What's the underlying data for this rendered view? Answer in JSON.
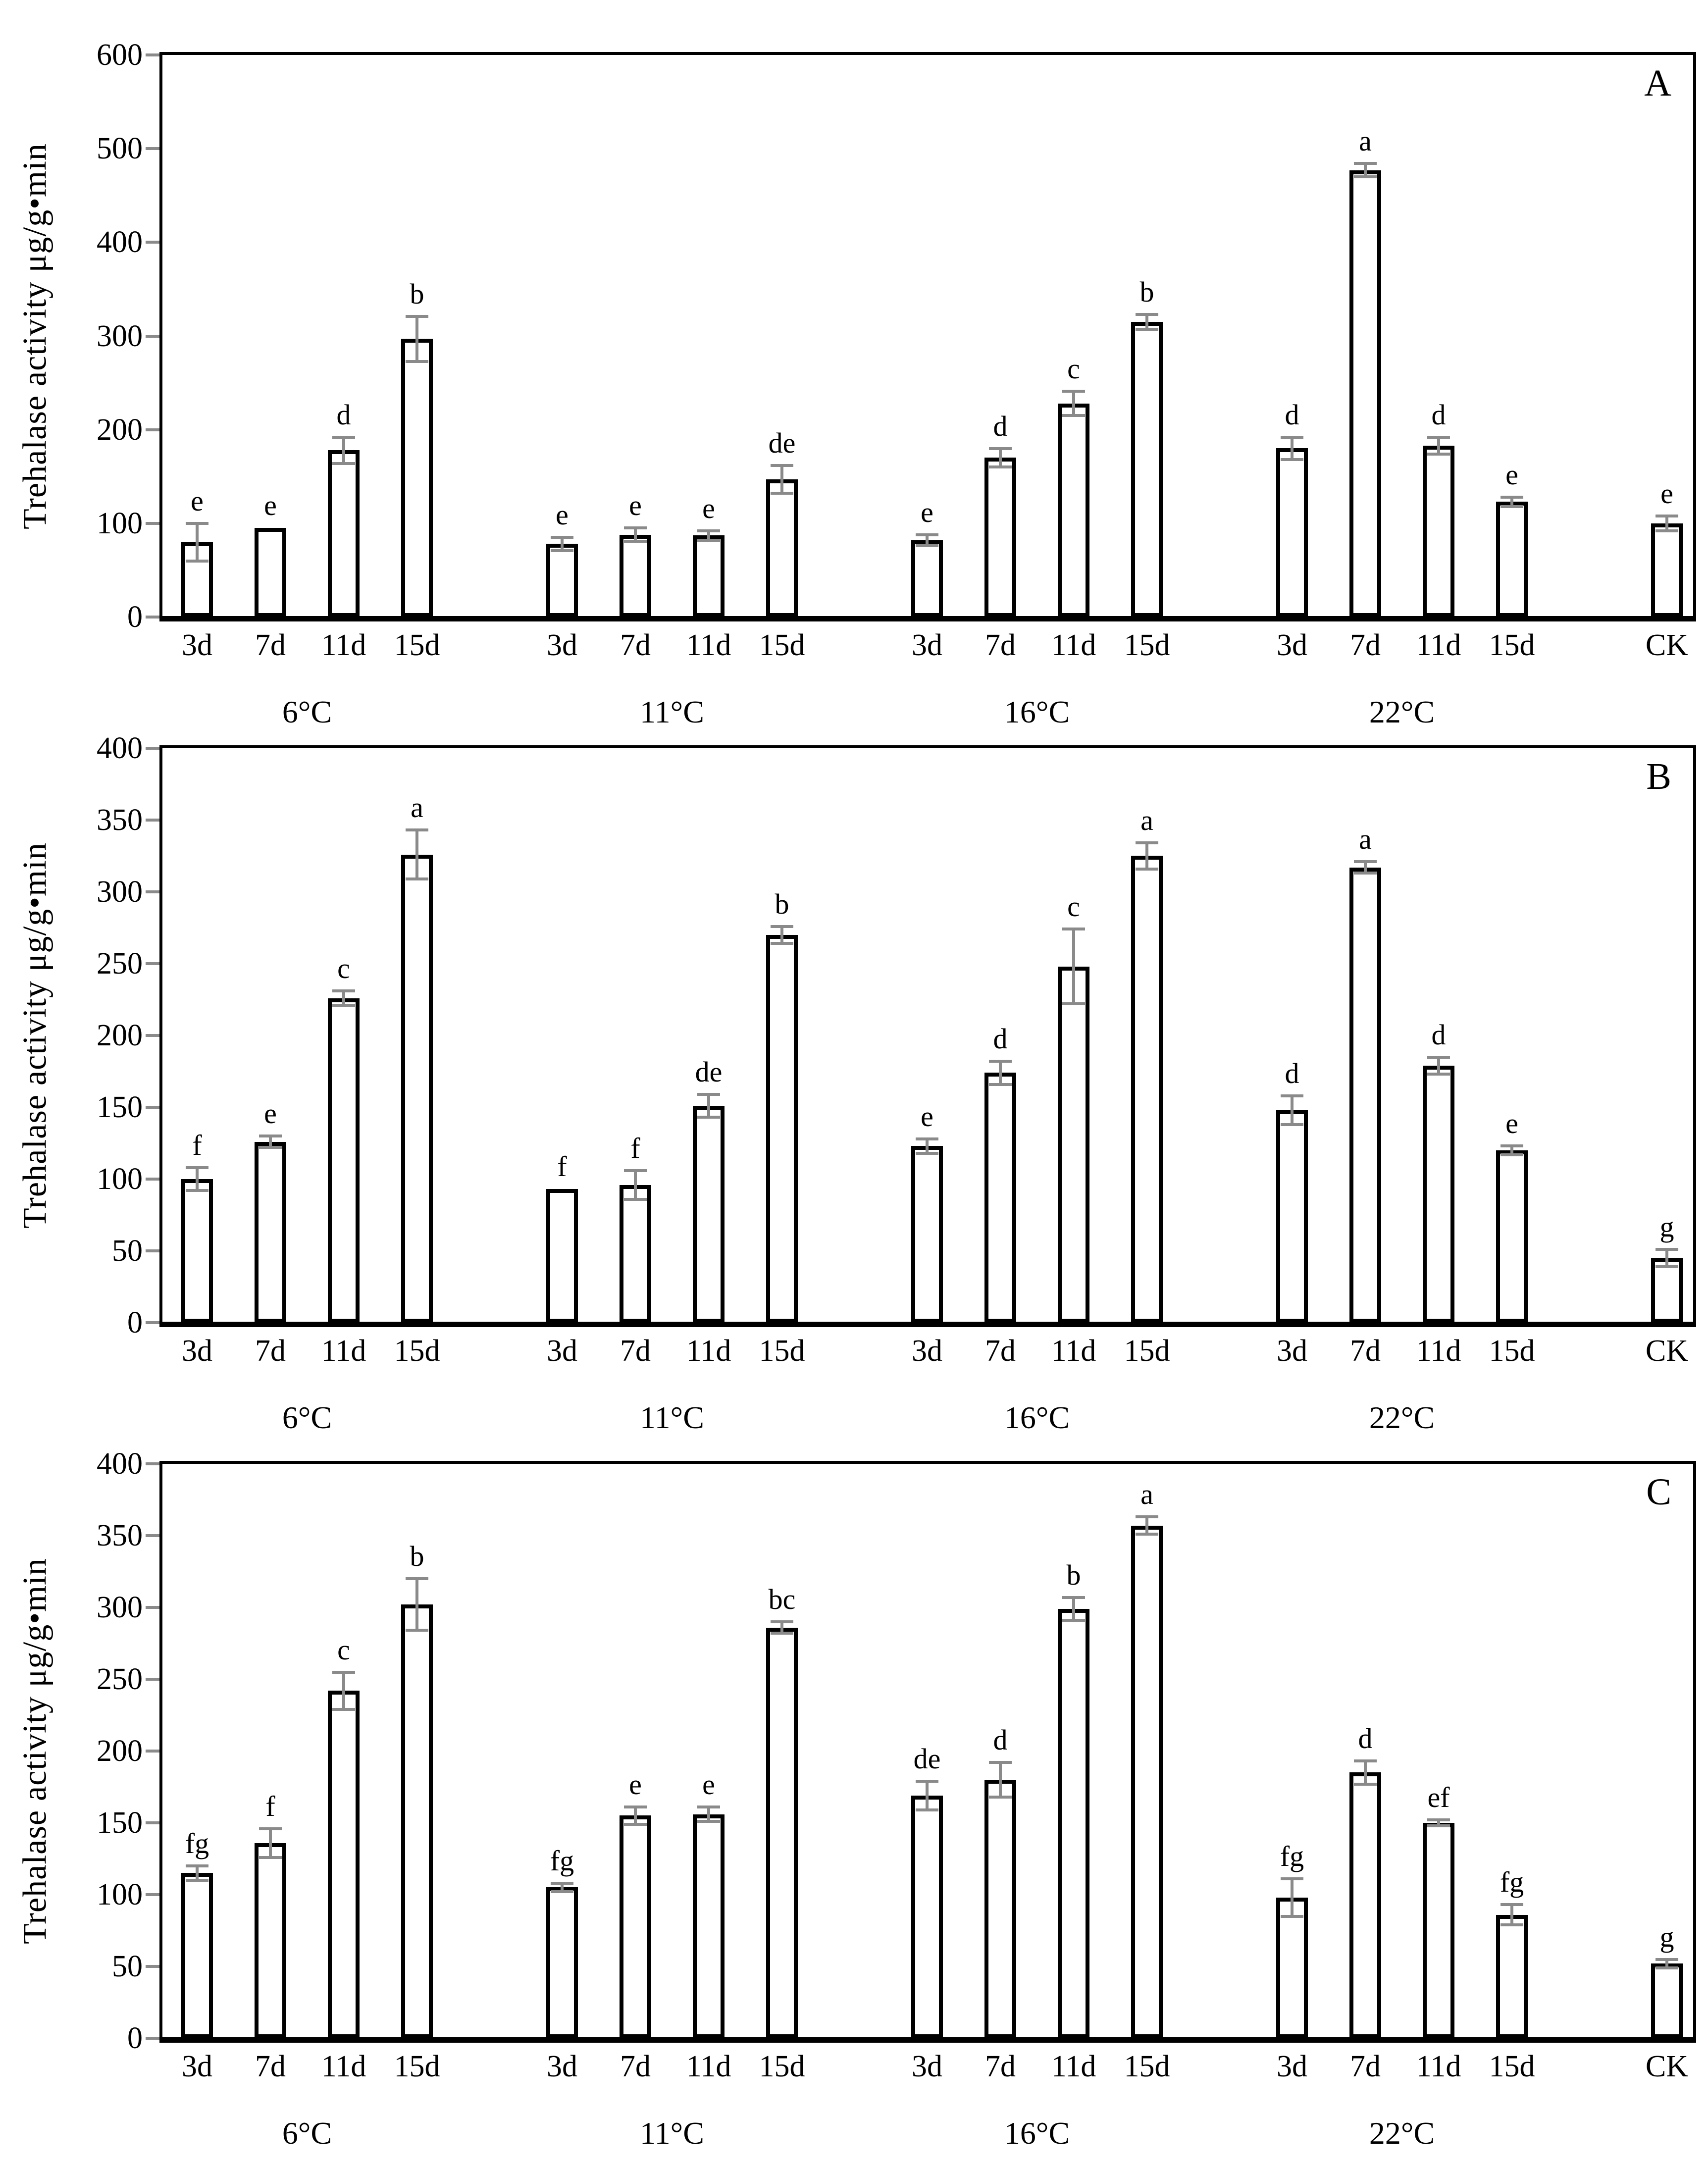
{
  "figure": {
    "background": "#ffffff",
    "bar_fill": "#ffffff",
    "bar_border": "#000000",
    "error_bar_color": "#8a8a8a",
    "axis_color": "#000000"
  },
  "chart_data": [
    {
      "type": "bar",
      "panel_label": "A",
      "title": "",
      "xlabel": "",
      "ylabel": "Trehalase activity μg/g•min",
      "ylim": [
        0,
        600
      ],
      "ytick_step": 100,
      "grid": false,
      "legend": "none",
      "groups": [
        {
          "label": "6°C",
          "bars": [
            {
              "x": "3d",
              "value": 80,
              "err": 20,
              "sig": "e"
            },
            {
              "x": "7d",
              "value": 95,
              "err": 0,
              "sig": "e"
            },
            {
              "x": "11d",
              "value": 178,
              "err": 14,
              "sig": "d"
            },
            {
              "x": "15d",
              "value": 297,
              "err": 24,
              "sig": "b"
            }
          ]
        },
        {
          "label": "11°C",
          "bars": [
            {
              "x": "3d",
              "value": 78,
              "err": 7,
              "sig": "e"
            },
            {
              "x": "7d",
              "value": 88,
              "err": 7,
              "sig": "e"
            },
            {
              "x": "11d",
              "value": 87,
              "err": 5,
              "sig": "e"
            },
            {
              "x": "15d",
              "value": 147,
              "err": 15,
              "sig": "de"
            }
          ]
        },
        {
          "label": "16°C",
          "bars": [
            {
              "x": "3d",
              "value": 82,
              "err": 6,
              "sig": "e"
            },
            {
              "x": "7d",
              "value": 170,
              "err": 10,
              "sig": "d"
            },
            {
              "x": "11d",
              "value": 228,
              "err": 13,
              "sig": "c"
            },
            {
              "x": "15d",
              "value": 315,
              "err": 8,
              "sig": "b"
            }
          ]
        },
        {
          "label": "22°C",
          "bars": [
            {
              "x": "3d",
              "value": 180,
              "err": 12,
              "sig": "d"
            },
            {
              "x": "7d",
              "value": 477,
              "err": 7,
              "sig": "a"
            },
            {
              "x": "11d",
              "value": 183,
              "err": 9,
              "sig": "d"
            },
            {
              "x": "15d",
              "value": 123,
              "err": 5,
              "sig": "e"
            }
          ]
        }
      ],
      "ck": {
        "x": "CK",
        "value": 100,
        "err": 8,
        "sig": "e"
      }
    },
    {
      "type": "bar",
      "panel_label": "B",
      "title": "",
      "xlabel": "",
      "ylabel": "Trehalase activity μg/g•min",
      "ylim": [
        0,
        400
      ],
      "ytick_step": 50,
      "grid": false,
      "legend": "none",
      "groups": [
        {
          "label": "6°C",
          "bars": [
            {
              "x": "3d",
              "value": 100,
              "err": 8,
              "sig": "f"
            },
            {
              "x": "7d",
              "value": 126,
              "err": 4,
              "sig": "e"
            },
            {
              "x": "11d",
              "value": 226,
              "err": 5,
              "sig": "c"
            },
            {
              "x": "15d",
              "value": 326,
              "err": 17,
              "sig": "a"
            }
          ]
        },
        {
          "label": "11°C",
          "bars": [
            {
              "x": "3d",
              "value": 93,
              "err": 0,
              "sig": "f"
            },
            {
              "x": "7d",
              "value": 96,
              "err": 10,
              "sig": "f"
            },
            {
              "x": "11d",
              "value": 151,
              "err": 8,
              "sig": "de"
            },
            {
              "x": "15d",
              "value": 270,
              "err": 6,
              "sig": "b"
            }
          ]
        },
        {
          "label": "16°C",
          "bars": [
            {
              "x": "3d",
              "value": 123,
              "err": 5,
              "sig": "e"
            },
            {
              "x": "7d",
              "value": 174,
              "err": 8,
              "sig": "d"
            },
            {
              "x": "11d",
              "value": 248,
              "err": 26,
              "sig": "c"
            },
            {
              "x": "15d",
              "value": 325,
              "err": 9,
              "sig": "a"
            }
          ]
        },
        {
          "label": "22°C",
          "bars": [
            {
              "x": "3d",
              "value": 148,
              "err": 10,
              "sig": "d"
            },
            {
              "x": "7d",
              "value": 317,
              "err": 4,
              "sig": "a"
            },
            {
              "x": "11d",
              "value": 179,
              "err": 6,
              "sig": "d"
            },
            {
              "x": "15d",
              "value": 120,
              "err": 3,
              "sig": "e"
            }
          ]
        }
      ],
      "ck": {
        "x": "CK",
        "value": 45,
        "err": 6,
        "sig": "g"
      }
    },
    {
      "type": "bar",
      "panel_label": "C",
      "title": "",
      "xlabel": "",
      "ylabel": "Trehalase activity μg/g•min",
      "ylim": [
        0,
        400
      ],
      "ytick_step": 50,
      "grid": false,
      "legend": "none",
      "groups": [
        {
          "label": "6°C",
          "bars": [
            {
              "x": "3d",
              "value": 115,
              "err": 5,
              "sig": "fg"
            },
            {
              "x": "7d",
              "value": 136,
              "err": 10,
              "sig": "f"
            },
            {
              "x": "11d",
              "value": 242,
              "err": 13,
              "sig": "c"
            },
            {
              "x": "15d",
              "value": 302,
              "err": 18,
              "sig": "b"
            }
          ]
        },
        {
          "label": "11°C",
          "bars": [
            {
              "x": "3d",
              "value": 105,
              "err": 3,
              "sig": "fg"
            },
            {
              "x": "7d",
              "value": 155,
              "err": 6,
              "sig": "e"
            },
            {
              "x": "11d",
              "value": 156,
              "err": 5,
              "sig": "e"
            },
            {
              "x": "15d",
              "value": 286,
              "err": 4,
              "sig": "bc"
            }
          ]
        },
        {
          "label": "16°C",
          "bars": [
            {
              "x": "3d",
              "value": 169,
              "err": 10,
              "sig": "de"
            },
            {
              "x": "7d",
              "value": 180,
              "err": 12,
              "sig": "d"
            },
            {
              "x": "11d",
              "value": 299,
              "err": 8,
              "sig": "b"
            },
            {
              "x": "15d",
              "value": 357,
              "err": 6,
              "sig": "a"
            }
          ]
        },
        {
          "label": "22°C",
          "bars": [
            {
              "x": "3d",
              "value": 98,
              "err": 13,
              "sig": "fg"
            },
            {
              "x": "7d",
              "value": 185,
              "err": 8,
              "sig": "d"
            },
            {
              "x": "11d",
              "value": 150,
              "err": 2,
              "sig": "ef"
            },
            {
              "x": "15d",
              "value": 86,
              "err": 7,
              "sig": "fg"
            }
          ]
        }
      ],
      "ck": {
        "x": "CK",
        "value": 52,
        "err": 3,
        "sig": "g"
      }
    }
  ]
}
